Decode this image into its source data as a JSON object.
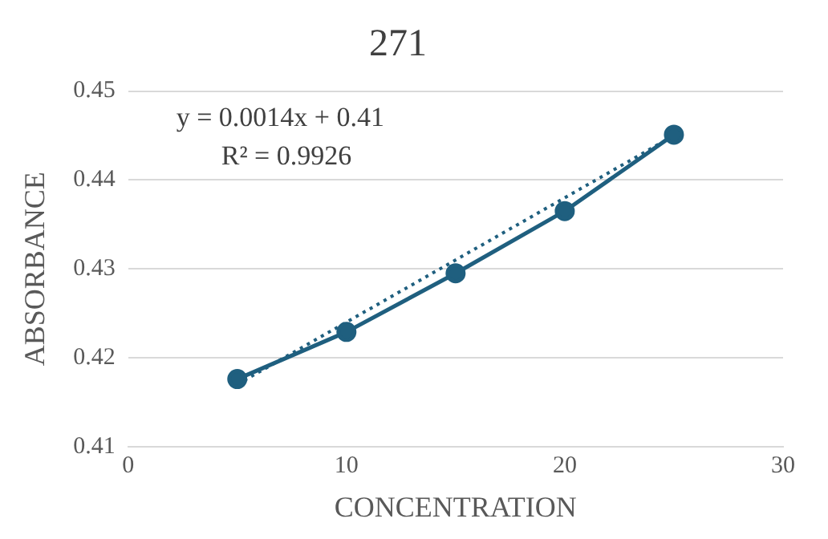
{
  "chart_data": {
    "type": "line",
    "title": "271",
    "xlabel": "CONCENTRATION",
    "ylabel": "ABSORBANCE",
    "x": [
      5,
      10,
      15,
      20,
      25
    ],
    "series": [
      {
        "color": "#1f5f7f",
        "values": [
          0.4176,
          0.4229,
          0.4295,
          0.4365,
          0.4451
        ],
        "marker": "circle",
        "line_style": "solid"
      },
      {
        "color": "#1f5f7f",
        "x": [
          5,
          25
        ],
        "values": [
          0.417,
          0.445
        ],
        "marker": "none",
        "line_style": "dotted"
      }
    ],
    "xlim": [
      0,
      30
    ],
    "xticks": [
      0,
      10,
      20,
      30
    ],
    "ylim": [
      0.41,
      0.45
    ],
    "yticks": [
      0.41,
      0.42,
      0.43,
      0.44,
      0.45
    ],
    "grid": "y",
    "legend": false,
    "annotations": [
      "y = 0.0014x + 0.41",
      "R² = 0.9926"
    ]
  }
}
